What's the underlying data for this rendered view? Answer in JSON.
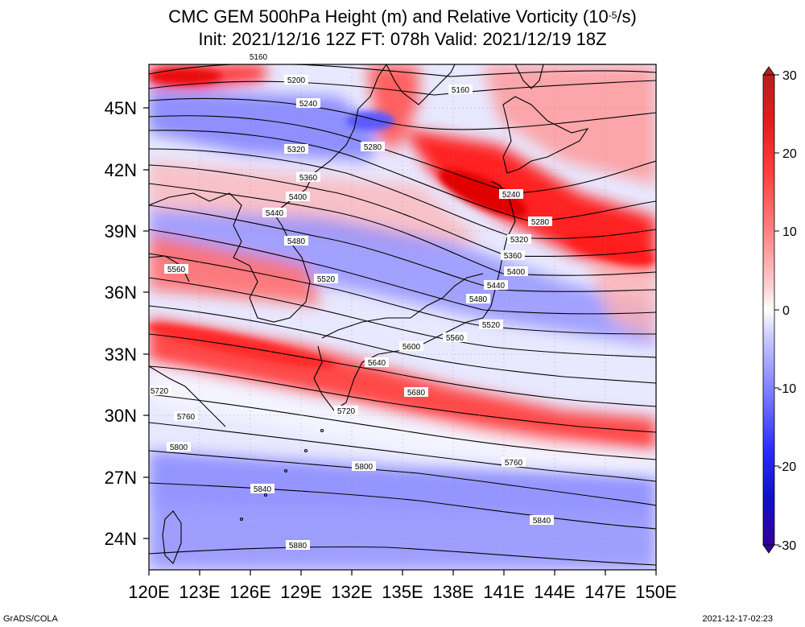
{
  "title": {
    "line1_prefix": "CMC GEM 500hPa Height (m) and Relative Vorticity (10",
    "line1_exp": "-5",
    "line1_suffix": "/s)",
    "line2": "Init: 2021/12/16 12Z  FT: 078h  Valid: 2021/12/19 18Z"
  },
  "axes": {
    "lon_labels": [
      "120E",
      "123E",
      "126E",
      "129E",
      "132E",
      "135E",
      "138E",
      "141E",
      "144E",
      "147E",
      "150E"
    ],
    "lat_labels": [
      "24N",
      "27N",
      "30N",
      "33N",
      "36N",
      "39N",
      "42N",
      "45N"
    ],
    "lon_range": [
      120,
      150
    ],
    "lat_range": [
      22.5,
      47.5
    ]
  },
  "colorbar": {
    "labels": [
      "30",
      "20",
      "10",
      "0",
      "-10",
      "-20",
      "-30"
    ],
    "range": [
      -30,
      30
    ],
    "colors": [
      "#b32020",
      "#e61c1c",
      "#ff4d4d",
      "#ff9999",
      "#ffd9d9",
      "#ffffff",
      "#d9d9ff",
      "#9999ff",
      "#4d4dff",
      "#1414e6",
      "#3300aa"
    ]
  },
  "contour_labels": [
    "5160",
    "5200",
    "5240",
    "5160",
    "5280",
    "5320",
    "5360",
    "5240",
    "5400",
    "5280",
    "5440",
    "5320",
    "5480",
    "5360",
    "5560",
    "5520",
    "5400",
    "5440",
    "5480",
    "5520",
    "5560",
    "5600",
    "5640",
    "5680",
    "5720",
    "5720",
    "5760",
    "5800",
    "5760",
    "5800",
    "5840",
    "5840",
    "5880"
  ],
  "footer": {
    "left": "GrADS/COLA",
    "right": "2021-12-17-02:23"
  }
}
